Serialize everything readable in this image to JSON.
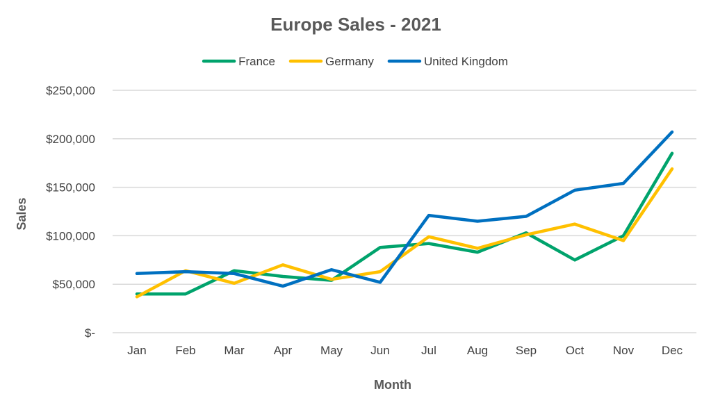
{
  "chart_data": {
    "type": "line",
    "title": "Europe Sales - 2021",
    "xlabel": "Month",
    "ylabel": "Sales",
    "categories": [
      "Jan",
      "Feb",
      "Mar",
      "Apr",
      "May",
      "Jun",
      "Jul",
      "Aug",
      "Sep",
      "Oct",
      "Nov",
      "Dec"
    ],
    "ylim": [
      0,
      250000
    ],
    "yticks": [
      0,
      50000,
      100000,
      150000,
      200000,
      250000
    ],
    "ytick_labels": [
      "$-",
      "$50,000",
      "$100,000",
      "$150,000",
      "$200,000",
      "$250,000"
    ],
    "grid": true,
    "legend_position": "top",
    "series": [
      {
        "name": "France",
        "color": "#00a36c",
        "values": [
          40000,
          40000,
          64000,
          58000,
          54000,
          88000,
          92000,
          83000,
          103000,
          75000,
          100000,
          185000
        ]
      },
      {
        "name": "Germany",
        "color": "#ffc000",
        "values": [
          37000,
          64000,
          51000,
          70000,
          55000,
          63000,
          99000,
          87000,
          101000,
          112000,
          95000,
          169000
        ]
      },
      {
        "name": "United Kingdom",
        "color": "#0070c0",
        "values": [
          61000,
          63000,
          61000,
          48000,
          65000,
          52000,
          121000,
          115000,
          120000,
          147000,
          154000,
          207000
        ]
      }
    ]
  }
}
